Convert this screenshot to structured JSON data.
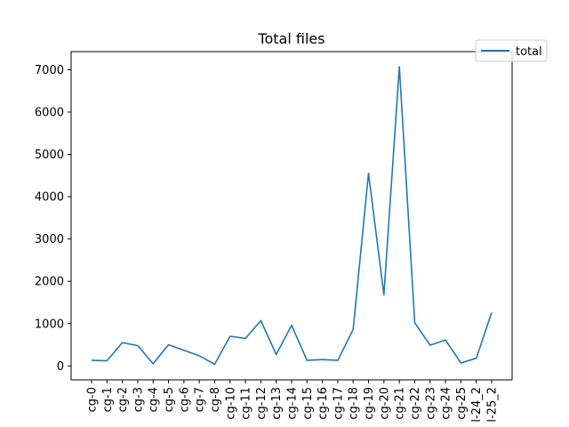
{
  "chart_data": {
    "type": "line",
    "title": "Total files",
    "xlabel": "",
    "ylabel": "",
    "categories": [
      "cg-0",
      "cg-1",
      "cg-2",
      "cg-3",
      "cg-4",
      "cg-5",
      "cg-6",
      "cg-7",
      "cg-8",
      "cg-10",
      "cg-11",
      "cg-12",
      "cg-13",
      "cg-14",
      "cg-15",
      "cg-16",
      "cg-17",
      "cg-18",
      "cg-19",
      "cg-20",
      "cg-21",
      "cg-22",
      "cg-23",
      "cg-24",
      "cg-25",
      "l-24_2",
      "l-25_2"
    ],
    "series": [
      {
        "name": "total",
        "color": "#1f77b4",
        "values": [
          130,
          120,
          550,
          480,
          50,
          500,
          370,
          240,
          40,
          700,
          650,
          1070,
          270,
          960,
          130,
          150,
          130,
          860,
          4550,
          1680,
          7070,
          1020,
          490,
          610,
          70,
          180,
          1260
        ]
      }
    ],
    "yticks": [
      0,
      1000,
      2000,
      3000,
      4000,
      5000,
      6000,
      7000
    ],
    "ylim": [
      -330,
      7430
    ],
    "grid": false,
    "legend": "top-right"
  }
}
